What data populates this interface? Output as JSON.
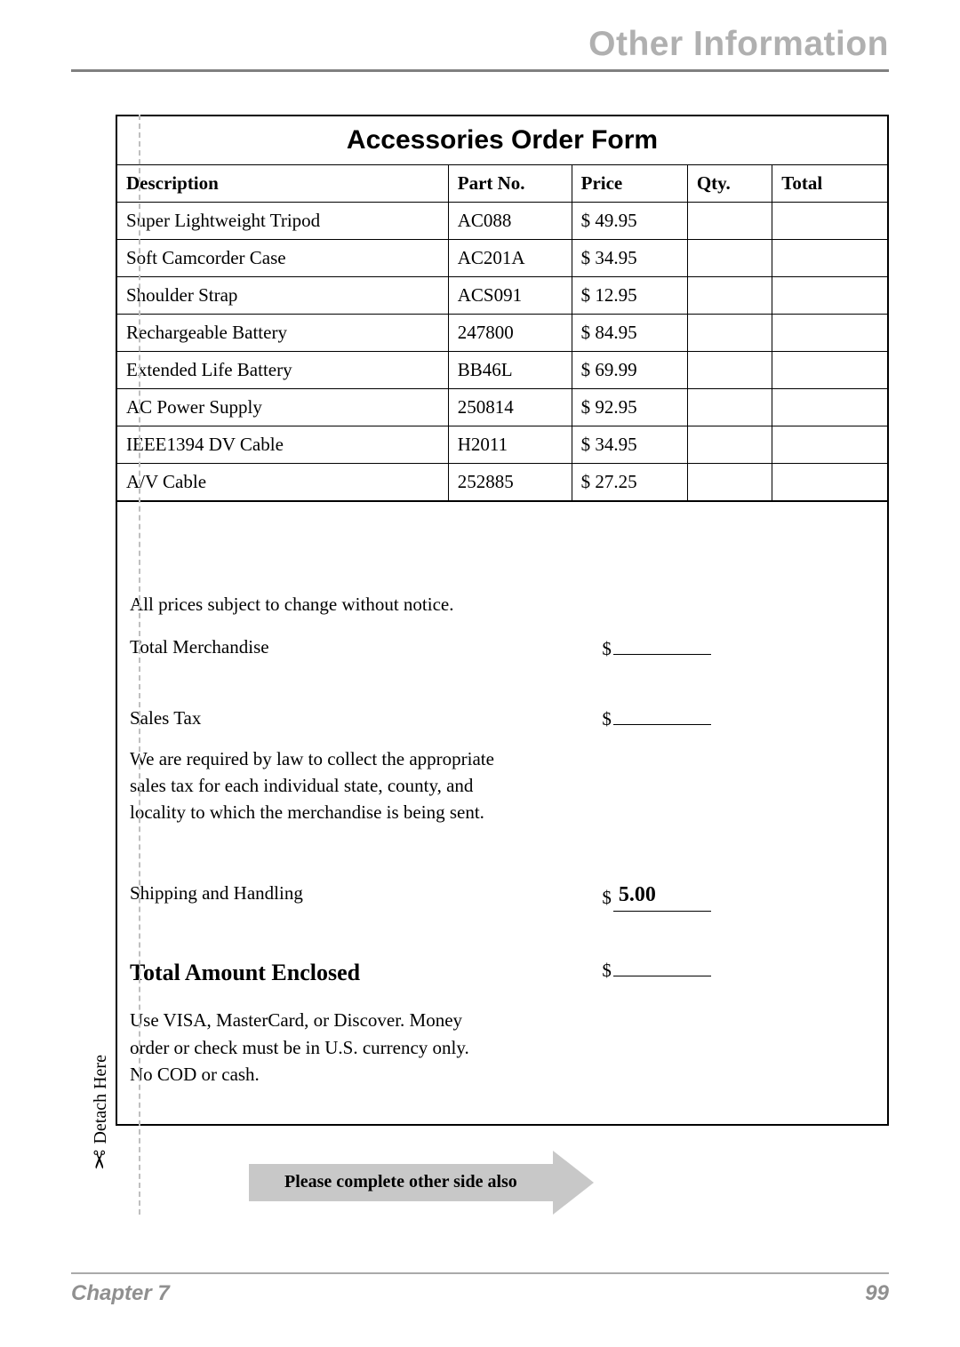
{
  "header": {
    "title": "Other Information"
  },
  "form": {
    "title": "Accessories Order Form",
    "columns": [
      "Description",
      "Part No.",
      "Price",
      "Qty.",
      "Total"
    ],
    "rows": [
      {
        "description": "Super Lightweight Tripod",
        "part_no": "AC088",
        "price": "$ 49.95"
      },
      {
        "description": "Soft Camcorder Case",
        "part_no": "AC201A",
        "price": "$ 34.95"
      },
      {
        "description": "Shoulder Strap",
        "part_no": "ACS091",
        "price": "$ 12.95"
      },
      {
        "description": "Rechargeable Battery",
        "part_no": "247800",
        "price": "$ 84.95"
      },
      {
        "description": "Extended Life Battery",
        "part_no": "BB46L",
        "price": "$ 69.99"
      },
      {
        "description": "AC Power Supply",
        "part_no": "250814",
        "price": "$ 92.95"
      },
      {
        "description": "IEEE1394 DV Cable",
        "part_no": "H2011",
        "price": "$ 34.95"
      },
      {
        "description": "A/V Cable",
        "part_no": "252885",
        "price": "$ 27.25"
      }
    ]
  },
  "notes": {
    "price_change": "All prices subject to change without notice.",
    "total_merch_label": "Total Merchandise",
    "sales_tax_label": "Sales Tax",
    "sales_tax_note": "We are required by law to collect the appropriate sales tax for each individual state, county, and locality to which the merchandise is being sent.",
    "shipping_label": "Shipping and Handling",
    "shipping_value": "5.00",
    "total_enclosed_label": "Total Amount Enclosed",
    "payment_note": "Use VISA, MasterCard, or Discover. Money order or check must be in U.S. currency only. No COD or cash."
  },
  "detach": {
    "label": "Detach Here"
  },
  "arrow": {
    "text": "Please complete other side also"
  },
  "footer": {
    "chapter": "Chapter 7",
    "page": "99"
  },
  "colors": {
    "header_text": "#b0b0b0",
    "rule": "#808080",
    "dash": "#bfbfbf",
    "arrow_bg": "#c8c8c8",
    "footer_text": "#909090"
  }
}
